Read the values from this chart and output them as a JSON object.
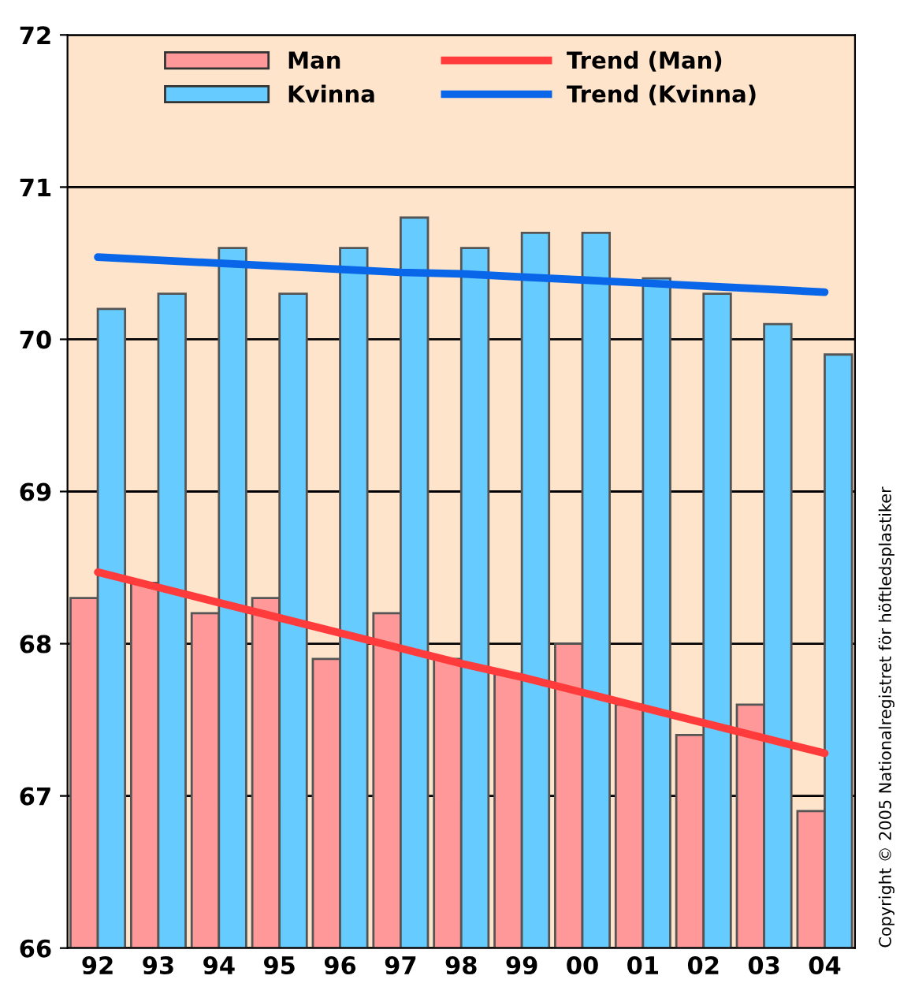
{
  "chart_data": {
    "type": "bar",
    "categories": [
      "92",
      "93",
      "94",
      "95",
      "96",
      "97",
      "98",
      "99",
      "00",
      "01",
      "02",
      "03",
      "04"
    ],
    "series": [
      {
        "name": "Man",
        "color": "#ff9999",
        "values": [
          68.3,
          68.4,
          68.2,
          68.3,
          67.9,
          68.2,
          67.9,
          67.8,
          68.0,
          67.6,
          67.4,
          67.6,
          66.9
        ]
      },
      {
        "name": "Kvinna",
        "color": "#66ccff",
        "values": [
          70.2,
          70.3,
          70.6,
          70.3,
          70.6,
          70.8,
          70.6,
          70.7,
          70.7,
          70.4,
          70.3,
          70.1,
          69.9
        ]
      },
      {
        "name": "Trend (Man)",
        "type": "line",
        "color": "#ff3b3b",
        "values": [
          68.47,
          68.37,
          68.27,
          68.17,
          68.07,
          67.97,
          67.87,
          67.78,
          67.68,
          67.58,
          67.48,
          67.38,
          67.28
        ]
      },
      {
        "name": "Trend (Kvinna)",
        "type": "line",
        "color": "#0a66e8",
        "values": [
          70.54,
          70.52,
          70.5,
          70.48,
          70.46,
          70.44,
          70.43,
          70.41,
          70.39,
          70.37,
          70.35,
          70.33,
          70.31
        ]
      }
    ],
    "ylim": [
      66,
      72
    ],
    "yticks": [
      66,
      67,
      68,
      69,
      70,
      71,
      72
    ],
    "grid": "y",
    "legend": "top",
    "line_style": "solid",
    "marker": "none",
    "annotations": [
      "Copyright © 2005 Nationalregistret för höftledsplastiker"
    ]
  }
}
